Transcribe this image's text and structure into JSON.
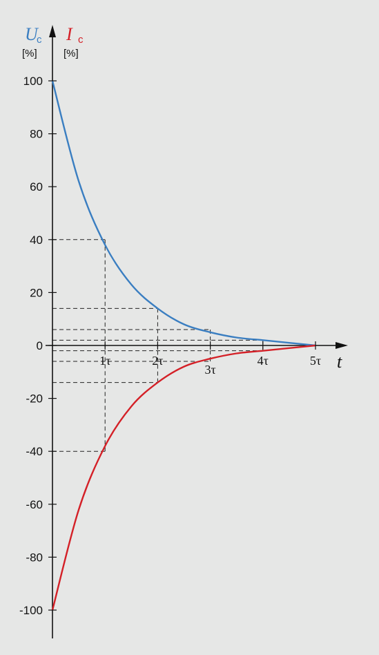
{
  "chart_data": {
    "type": "line",
    "y_axis_labels": [
      {
        "symbol": "U",
        "subscript": "c",
        "unit": "[%]",
        "color": "#3a7ec1"
      },
      {
        "symbol": "I",
        "subscript": "c",
        "unit": "[%]",
        "color": "#d42027"
      }
    ],
    "xlabel": "t",
    "ylim": [
      -100,
      100
    ],
    "xlim": [
      0,
      5
    ],
    "yticks": [
      {
        "value": 100,
        "label": "100"
      },
      {
        "value": 80,
        "label": "80"
      },
      {
        "value": 60,
        "label": "60"
      },
      {
        "value": 40,
        "label": "40"
      },
      {
        "value": 20,
        "label": "20"
      },
      {
        "value": 0,
        "label": "0"
      },
      {
        "value": -20,
        "label": "-20"
      },
      {
        "value": -40,
        "label": "-40"
      },
      {
        "value": -60,
        "label": "-60"
      },
      {
        "value": -80,
        "label": "-80"
      },
      {
        "value": -100,
        "label": "-100"
      }
    ],
    "xticks": [
      {
        "value": 1,
        "label": "1τ"
      },
      {
        "value": 2,
        "label": "2τ"
      },
      {
        "value": 3,
        "label": "3τ"
      },
      {
        "value": 4,
        "label": "4τ"
      },
      {
        "value": 5,
        "label": "5τ"
      }
    ],
    "series": [
      {
        "color": "#3a7ec1",
        "x": [
          0,
          0.5,
          1,
          1.5,
          2,
          2.5,
          3,
          3.5,
          4,
          4.5,
          5
        ],
        "values": [
          100,
          62,
          38,
          23,
          14,
          8,
          5,
          3,
          2,
          1,
          0
        ]
      },
      {
        "color": "#d42027",
        "x": [
          0,
          0.5,
          1,
          1.5,
          2,
          2.5,
          3,
          3.5,
          4,
          4.5,
          5
        ],
        "values": [
          -100,
          -62,
          -38,
          -23,
          -14,
          -8,
          -5,
          -3,
          -2,
          -1,
          0
        ]
      }
    ],
    "guides": [
      {
        "x": 1,
        "y": 40
      },
      {
        "x": 2,
        "y": 14
      },
      {
        "x": 3,
        "y": 6
      },
      {
        "x": 4,
        "y": 2
      },
      {
        "x": 1,
        "y": -40
      },
      {
        "x": 2,
        "y": -14
      },
      {
        "x": 3,
        "y": -6
      },
      {
        "x": 4,
        "y": -2
      }
    ]
  }
}
